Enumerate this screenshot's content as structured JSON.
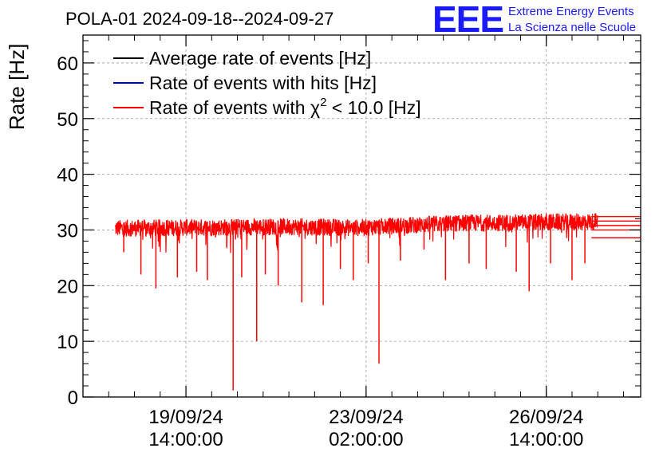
{
  "logo": {
    "mark": "EEE",
    "line1": "Extreme Energy Events",
    "line2": "La Scienza nelle Scuole",
    "color": "#1a1aff"
  },
  "chart_data": {
    "type": "line",
    "title": "POLA-01 2024-09-18--2024-09-27",
    "ylabel": "Rate [Hz]",
    "xlabel": "",
    "ylim": [
      0,
      65
    ],
    "yticks": [
      0,
      10,
      20,
      30,
      40,
      50,
      60
    ],
    "xlim": [
      "2024-09-17 14:00:00",
      "2024-09-28 10:00:00"
    ],
    "xticks": [
      {
        "date": "2024-09-19 14:00:00",
        "line1": "19/09/24",
        "line2": "14:00:00"
      },
      {
        "date": "2024-09-23 02:00:00",
        "line1": "23/09/24",
        "line2": "02:00:00"
      },
      {
        "date": "2024-09-26 14:00:00",
        "line1": "26/09/24",
        "line2": "14:00:00"
      }
    ],
    "grid": true,
    "legend_position": "top-left",
    "series": [
      {
        "name": "Average rate of events [Hz]",
        "color": "#000000"
      },
      {
        "name": "Rate of events with hits [Hz]",
        "color": "#0000cc"
      },
      {
        "name": "Rate of events with χ² < 10.0 [Hz]",
        "name_main": "Rate of events with χ",
        "name_sup": "2",
        "name_rest": " < 10.0 [Hz]",
        "color": "#ff0000",
        "x_start": "2024-09-18 05:00:00",
        "x_end": "2024-09-27 14:00:00",
        "baseline": [
          [
            0,
            30.3
          ],
          [
            0.35,
            30.6
          ],
          [
            0.5,
            30.4
          ],
          [
            0.7,
            31.2
          ],
          [
            1.0,
            31.5
          ]
        ],
        "band": 2.2,
        "dips": [
          {
            "x": "2024-09-18 09:00:00",
            "y": 26.0
          },
          {
            "x": "2024-09-18 17:00:00",
            "y": 22.0
          },
          {
            "x": "2024-09-19 00:00:00",
            "y": 19.5
          },
          {
            "x": "2024-09-19 10:00:00",
            "y": 21.5
          },
          {
            "x": "2024-09-19 19:00:00",
            "y": 22.5
          },
          {
            "x": "2024-09-20 00:00:00",
            "y": 21.0
          },
          {
            "x": "2024-09-20 09:00:00",
            "y": 27.0
          },
          {
            "x": "2024-09-20 12:00:00",
            "y": 1.2
          },
          {
            "x": "2024-09-20 16:00:00",
            "y": 21.5
          },
          {
            "x": "2024-09-20 23:00:00",
            "y": 10.0
          },
          {
            "x": "2024-09-21 03:00:00",
            "y": 22.0
          },
          {
            "x": "2024-09-21 09:00:00",
            "y": 20.0
          },
          {
            "x": "2024-09-21 20:00:00",
            "y": 17.0
          },
          {
            "x": "2024-09-22 06:00:00",
            "y": 16.5
          },
          {
            "x": "2024-09-22 14:00:00",
            "y": 23.0
          },
          {
            "x": "2024-09-22 20:00:00",
            "y": 21.0
          },
          {
            "x": "2024-09-23 03:00:00",
            "y": 24.0
          },
          {
            "x": "2024-09-23 08:00:00",
            "y": 6.0
          },
          {
            "x": "2024-09-23 18:00:00",
            "y": 24.5
          },
          {
            "x": "2024-09-24 05:00:00",
            "y": 26.5
          },
          {
            "x": "2024-09-24 15:00:00",
            "y": 21.0
          },
          {
            "x": "2024-09-25 02:00:00",
            "y": 24.0
          },
          {
            "x": "2024-09-25 10:00:00",
            "y": 23.0
          },
          {
            "x": "2024-09-26 00:00:00",
            "y": 22.5
          },
          {
            "x": "2024-09-26 06:00:00",
            "y": 19.0
          },
          {
            "x": "2024-09-26 16:00:00",
            "y": 24.0
          },
          {
            "x": "2024-09-27 02:00:00",
            "y": 21.0
          },
          {
            "x": "2024-09-27 08:00:00",
            "y": 24.0
          }
        ],
        "final_markers": [
          32.4,
          31.6,
          30.8,
          30.0,
          28.6
        ]
      }
    ]
  }
}
